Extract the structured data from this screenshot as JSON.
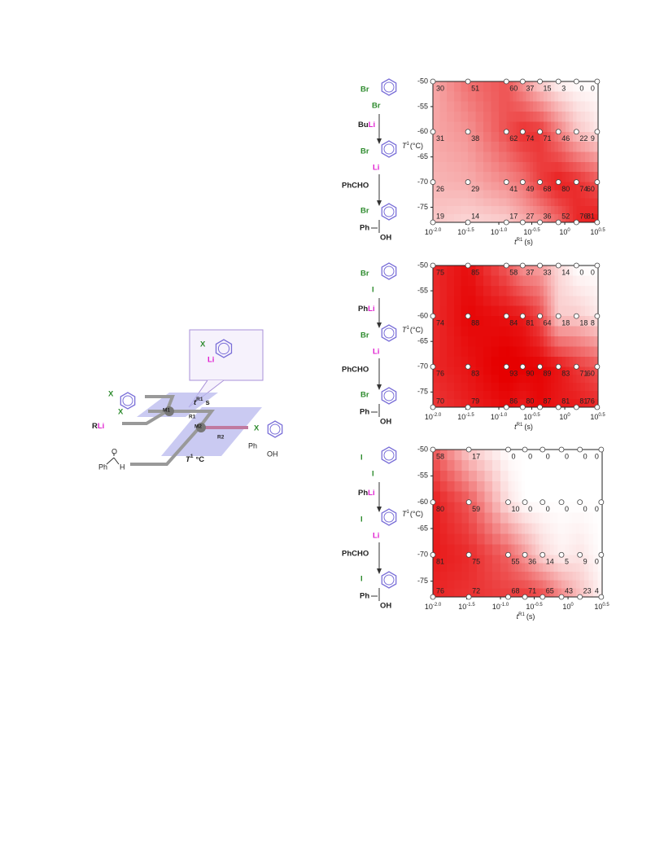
{
  "scheme": {
    "substrate_x1": "X",
    "substrate_x2": "X",
    "reagent_r": "R",
    "reagent_li": "Li",
    "mixer_1": "M1",
    "mixer_2": "M2",
    "reactor_1": "R1",
    "reactor_2": "R2",
    "time_t": "t",
    "time_sup": "R1",
    "time_unit": "s",
    "temp_t": "T",
    "temp_sup": "1",
    "temp_unit": "°C",
    "aldehyde_o": "O",
    "aldehyde_ph": "Ph",
    "aldehyde_h": "H",
    "intermediate_x": "X",
    "intermediate_li": "Li",
    "product_x": "X",
    "product_ph": "Ph",
    "product_oh": "OH"
  },
  "chart_data": [
    {
      "type": "contour",
      "reaction": {
        "sub_top": "Br",
        "sub_bottom": "Br",
        "reagent_r": "Bu",
        "reagent_li": "Li",
        "int_top": "Br",
        "int_bottom": "Li",
        "electrophile": "PhCHO",
        "prod_top": "Br",
        "prod_ph": "Ph",
        "prod_oh": "OH"
      },
      "x_label": "t",
      "x_label_sup": "R1",
      "x_label_unit": "(s)",
      "y_label": "T",
      "y_label_sup": "1",
      "y_label_unit": "(°C)",
      "x": [
        0.01,
        0.034,
        0.13,
        0.23,
        0.42,
        0.8,
        1.5,
        3.1
      ],
      "y": [
        -50,
        -60,
        -70,
        -78
      ],
      "values": [
        [
          30,
          51,
          60,
          37,
          15,
          3,
          0,
          0
        ],
        [
          31,
          38,
          62,
          74,
          71,
          46,
          22,
          9
        ],
        [
          26,
          29,
          41,
          49,
          68,
          80,
          74,
          60
        ],
        [
          19,
          14,
          17,
          27,
          36,
          52,
          76,
          81
        ]
      ],
      "xscale": "log",
      "xlim": [
        0.01,
        3.2
      ],
      "ylim": [
        -78,
        -50
      ],
      "xticks": [
        {
          "value": 0.01,
          "label": "10",
          "exponent": "-2.0"
        },
        {
          "value": 0.0316,
          "label": "10",
          "exponent": "-1.5"
        },
        {
          "value": 0.1,
          "label": "10",
          "exponent": "-1.0"
        },
        {
          "value": 0.316,
          "label": "10",
          "exponent": "-0.5"
        },
        {
          "value": 1,
          "label": "10",
          "exponent": "0"
        },
        {
          "value": 3.16,
          "label": "10",
          "exponent": "0.5"
        }
      ],
      "yticks": [
        -50,
        -55,
        -60,
        -65,
        -70,
        -75
      ],
      "color": "#e60000"
    },
    {
      "type": "contour",
      "reaction": {
        "sub_top": "Br",
        "sub_bottom": "I",
        "reagent_r": "Ph",
        "reagent_li": "Li",
        "int_top": "Br",
        "int_bottom": "Li",
        "electrophile": "PhCHO",
        "prod_top": "Br",
        "prod_ph": "Ph",
        "prod_oh": "OH"
      },
      "x_label": "t",
      "x_label_sup": "R1",
      "x_label_unit": "(s)",
      "y_label": "T",
      "y_label_sup": "1",
      "y_label_unit": "(°C)",
      "x": [
        0.01,
        0.034,
        0.13,
        0.23,
        0.42,
        0.8,
        1.5,
        3.1
      ],
      "y": [
        -50,
        -60,
        -70,
        -78
      ],
      "values": [
        [
          75,
          85,
          58,
          37,
          33,
          14,
          0,
          0
        ],
        [
          74,
          88,
          84,
          81,
          64,
          18,
          18,
          8
        ],
        [
          76,
          83,
          93,
          90,
          89,
          83,
          71,
          60
        ],
        [
          70,
          79,
          86,
          80,
          87,
          81,
          81,
          76
        ]
      ],
      "xscale": "log",
      "xlim": [
        0.01,
        3.2
      ],
      "ylim": [
        -78,
        -50
      ],
      "xticks": [
        {
          "value": 0.01,
          "label": "10",
          "exponent": "-2.0"
        },
        {
          "value": 0.0316,
          "label": "10",
          "exponent": "-1.5"
        },
        {
          "value": 0.1,
          "label": "10",
          "exponent": "-1.0"
        },
        {
          "value": 0.316,
          "label": "10",
          "exponent": "-0.5"
        },
        {
          "value": 1,
          "label": "10",
          "exponent": "0"
        },
        {
          "value": 3.16,
          "label": "10",
          "exponent": "0.5"
        }
      ],
      "yticks": [
        -50,
        -55,
        -60,
        -65,
        -70,
        -75
      ],
      "color": "#e60000"
    },
    {
      "type": "contour",
      "reaction": {
        "sub_top": "I",
        "sub_bottom": "I",
        "reagent_r": "Ph",
        "reagent_li": "Li",
        "int_top": "I",
        "int_bottom": "Li",
        "electrophile": "PhCHO",
        "prod_top": "I",
        "prod_ph": "Ph",
        "prod_oh": "OH"
      },
      "x_label": "t",
      "x_label_sup": "R1",
      "x_label_unit": "(s)",
      "y_label": "T",
      "y_label_sup": "1",
      "y_label_unit": "(°C)",
      "x": [
        0.01,
        0.034,
        0.13,
        0.23,
        0.42,
        0.8,
        1.5,
        3.1
      ],
      "y": [
        -50,
        -60,
        -70,
        -78
      ],
      "values": [
        [
          58,
          17,
          0,
          0,
          0,
          0,
          0,
          0
        ],
        [
          80,
          59,
          10,
          0,
          0,
          0,
          0,
          0
        ],
        [
          81,
          75,
          55,
          36,
          14,
          5,
          9,
          0
        ],
        [
          76,
          72,
          68,
          71,
          65,
          43,
          23,
          4
        ]
      ],
      "xscale": "log",
      "xlim": [
        0.01,
        3.2
      ],
      "ylim": [
        -78,
        -50
      ],
      "xticks": [
        {
          "value": 0.01,
          "label": "10",
          "exponent": "-2.0"
        },
        {
          "value": 0.0316,
          "label": "10",
          "exponent": "-1.5"
        },
        {
          "value": 0.1,
          "label": "10",
          "exponent": "-1.0"
        },
        {
          "value": 0.316,
          "label": "10",
          "exponent": "-0.5"
        },
        {
          "value": 1,
          "label": "10",
          "exponent": "0"
        },
        {
          "value": 3.16,
          "label": "10",
          "exponent": "0.5"
        }
      ],
      "yticks": [
        -50,
        -55,
        -60,
        -65,
        -70,
        -75
      ],
      "color": "#e60000"
    }
  ]
}
